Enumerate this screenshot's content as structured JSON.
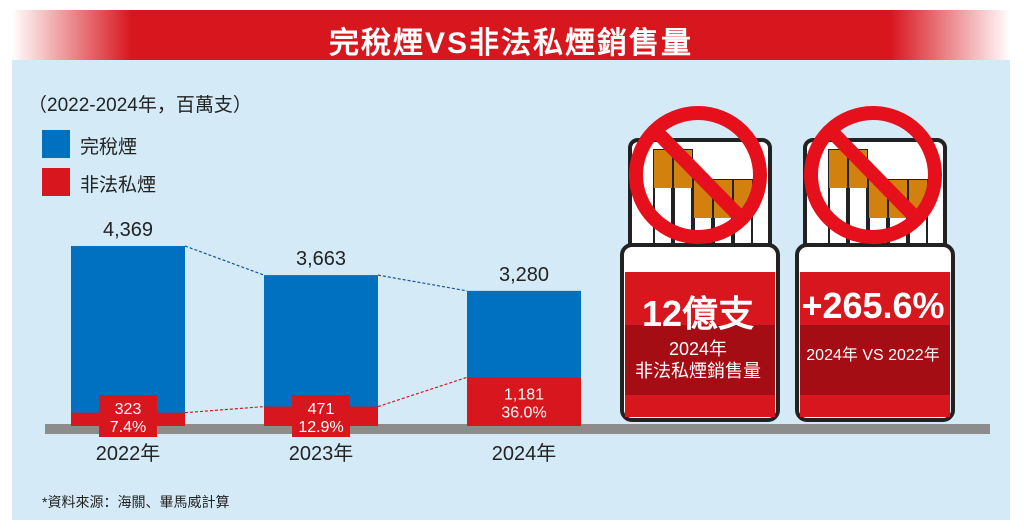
{
  "title": "完稅煙VS非法私煙銷售量",
  "unit": "（2022-2024年，百萬支）",
  "note": "*資料來源：海關、畢馬威計算",
  "colors": {
    "legal": "#0071c1",
    "illegal": "#d7161e",
    "baseline": "#8c8c8c"
  },
  "chart_data": {
    "type": "bar",
    "title": "完稅煙VS非法私煙銷售量",
    "categories": [
      "2022年",
      "2023年",
      "2024年"
    ],
    "series": [
      {
        "name": "完稅煙",
        "values": [
          4369,
          3663,
          3280
        ],
        "labels": [
          "4,369",
          "3,663",
          "3,280"
        ]
      },
      {
        "name": "非法私煙",
        "values": [
          323,
          471,
          1181
        ],
        "labels": [
          "323",
          "471",
          "1,181"
        ],
        "shares": [
          "7.4%",
          "12.9%",
          "36.0%"
        ]
      }
    ],
    "legend": [
      "完稅煙",
      "非法私煙"
    ],
    "ylim": [
      0,
      4500
    ]
  },
  "callouts": [
    {
      "big": "12億支",
      "sub1": "2024年",
      "sub2": "非法私煙銷售量"
    },
    {
      "big": "+265.6%",
      "sub1": "2024年 VS 2022年",
      "sub2": ""
    }
  ]
}
